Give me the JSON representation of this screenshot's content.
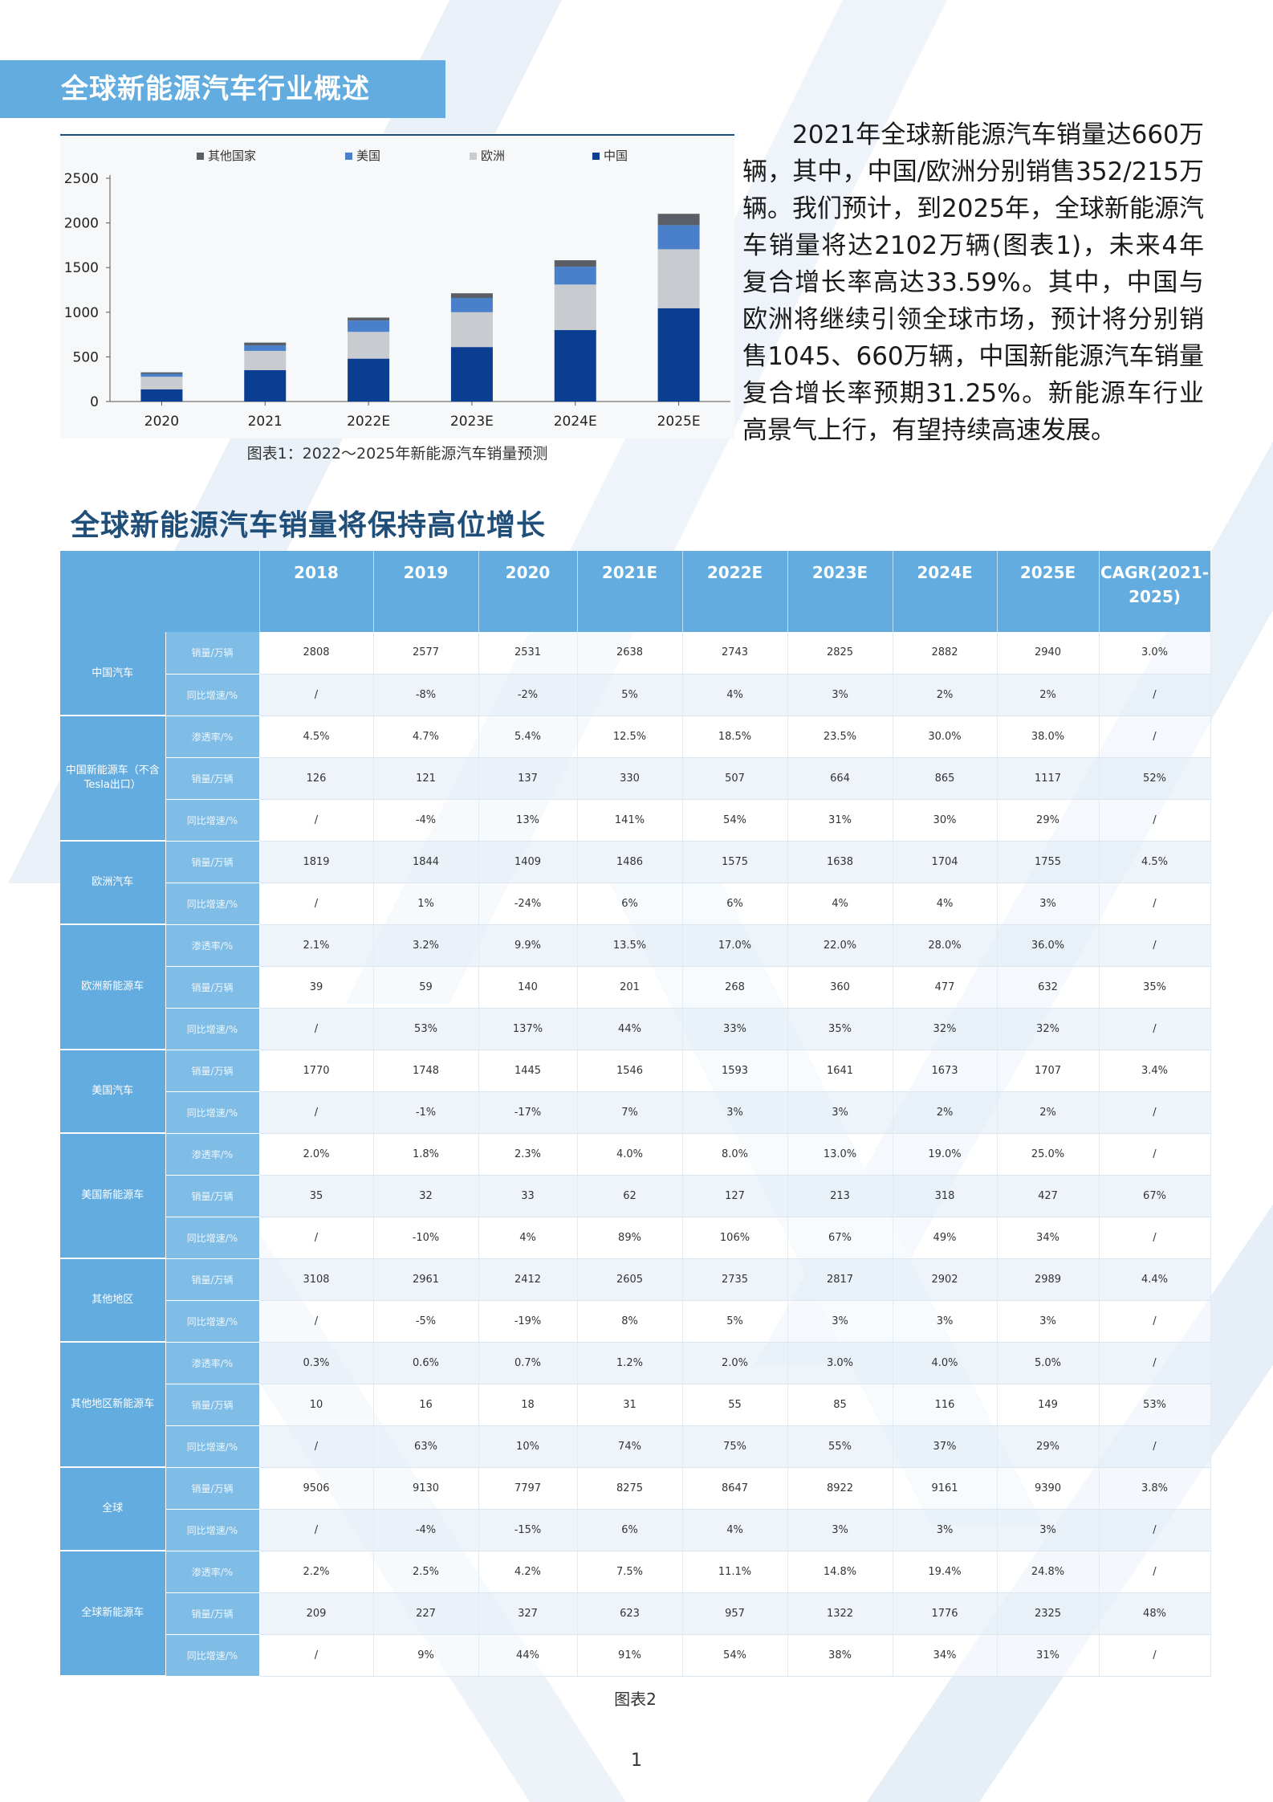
{
  "section": {
    "title": "全球新能源汽车行业概述"
  },
  "intro": {
    "text": "2021年全球新能源汽车销量达660万辆，其中，中国/欧洲分别销售352/215万辆。我们预计，到2025年，全球新能源汽车销量将达2102万辆(图表1)，未来4年复合增长率高达33.59%。其中，中国与欧洲将继续引领全球市场，预计将分别销售1045、660万辆，中国新能源汽车销量复合增长率预期31.25%。新能源车行业高景气上行，有望持续高速发展。"
  },
  "chart_data": {
    "type": "bar",
    "stacked": true,
    "caption": "图表1：2022～2025年新能源汽车销量预测",
    "categories": [
      "2020",
      "2021",
      "2022E",
      "2023E",
      "2024E",
      "2025E"
    ],
    "series": [
      {
        "name": "中国",
        "color": "#0b3d91",
        "values": [
          137,
          352,
          480,
          610,
          800,
          1045
        ]
      },
      {
        "name": "欧洲",
        "color": "#c8cbd0",
        "values": [
          140,
          215,
          300,
          390,
          510,
          660
        ]
      },
      {
        "name": "美国",
        "color": "#4a7fc9",
        "values": [
          33,
          62,
          127,
          160,
          200,
          270
        ]
      },
      {
        "name": "其他国家",
        "color": "#5a5e66",
        "values": [
          17,
          31,
          33,
          52,
          72,
          127
        ]
      }
    ],
    "yticks": [
      0,
      500,
      1000,
      1500,
      2000,
      2500
    ],
    "ylim": [
      0,
      2500
    ],
    "legend_order": [
      "其他国家",
      "美国",
      "欧洲",
      "中国"
    ],
    "legend_position": "top",
    "grid": false
  },
  "table": {
    "title": "全球新能源汽车销量将保持高位增长",
    "caption": "图表2",
    "headers": [
      "2018",
      "2019",
      "2020",
      "2021E",
      "2022E",
      "2023E",
      "2024E",
      "2025E",
      "CAGR(2021-2025)"
    ],
    "groups": [
      {
        "name": "中国汽车",
        "rows": [
          {
            "metric": "销量/万辆",
            "values": [
              "2808",
              "2577",
              "2531",
              "2638",
              "2743",
              "2825",
              "2882",
              "2940",
              "3.0%"
            ]
          },
          {
            "metric": "同比增速/%",
            "values": [
              "/",
              "-8%",
              "-2%",
              "5%",
              "4%",
              "3%",
              "2%",
              "2%",
              "/"
            ]
          }
        ]
      },
      {
        "name": "中国新能源车（不含Tesla出口）",
        "rows": [
          {
            "metric": "渗透率/%",
            "values": [
              "4.5%",
              "4.7%",
              "5.4%",
              "12.5%",
              "18.5%",
              "23.5%",
              "30.0%",
              "38.0%",
              "/"
            ]
          },
          {
            "metric": "销量/万辆",
            "values": [
              "126",
              "121",
              "137",
              "330",
              "507",
              "664",
              "865",
              "1117",
              "52%"
            ]
          },
          {
            "metric": "同比增速/%",
            "values": [
              "/",
              "-4%",
              "13%",
              "141%",
              "54%",
              "31%",
              "30%",
              "29%",
              "/"
            ]
          }
        ]
      },
      {
        "name": "欧洲汽车",
        "rows": [
          {
            "metric": "销量/万辆",
            "values": [
              "1819",
              "1844",
              "1409",
              "1486",
              "1575",
              "1638",
              "1704",
              "1755",
              "4.5%"
            ]
          },
          {
            "metric": "同比增速/%",
            "values": [
              "/",
              "1%",
              "-24%",
              "6%",
              "6%",
              "4%",
              "4%",
              "3%",
              "/"
            ]
          }
        ]
      },
      {
        "name": "欧洲新能源车",
        "rows": [
          {
            "metric": "渗透率/%",
            "values": [
              "2.1%",
              "3.2%",
              "9.9%",
              "13.5%",
              "17.0%",
              "22.0%",
              "28.0%",
              "36.0%",
              "/"
            ]
          },
          {
            "metric": "销量/万辆",
            "values": [
              "39",
              "59",
              "140",
              "201",
              "268",
              "360",
              "477",
              "632",
              "35%"
            ]
          },
          {
            "metric": "同比增速/%",
            "values": [
              "/",
              "53%",
              "137%",
              "44%",
              "33%",
              "35%",
              "32%",
              "32%",
              "/"
            ]
          }
        ]
      },
      {
        "name": "美国汽车",
        "rows": [
          {
            "metric": "销量/万辆",
            "values": [
              "1770",
              "1748",
              "1445",
              "1546",
              "1593",
              "1641",
              "1673",
              "1707",
              "3.4%"
            ]
          },
          {
            "metric": "同比增速/%",
            "values": [
              "/",
              "-1%",
              "-17%",
              "7%",
              "3%",
              "3%",
              "2%",
              "2%",
              "/"
            ]
          }
        ]
      },
      {
        "name": "美国新能源车",
        "rows": [
          {
            "metric": "渗透率/%",
            "values": [
              "2.0%",
              "1.8%",
              "2.3%",
              "4.0%",
              "8.0%",
              "13.0%",
              "19.0%",
              "25.0%",
              "/"
            ]
          },
          {
            "metric": "销量/万辆",
            "values": [
              "35",
              "32",
              "33",
              "62",
              "127",
              "213",
              "318",
              "427",
              "67%"
            ]
          },
          {
            "metric": "同比增速/%",
            "values": [
              "/",
              "-10%",
              "4%",
              "89%",
              "106%",
              "67%",
              "49%",
              "34%",
              "/"
            ]
          }
        ]
      },
      {
        "name": "其他地区",
        "rows": [
          {
            "metric": "销量/万辆",
            "values": [
              "3108",
              "2961",
              "2412",
              "2605",
              "2735",
              "2817",
              "2902",
              "2989",
              "4.4%"
            ]
          },
          {
            "metric": "同比增速/%",
            "values": [
              "/",
              "-5%",
              "-19%",
              "8%",
              "5%",
              "3%",
              "3%",
              "3%",
              "/"
            ]
          }
        ]
      },
      {
        "name": "其他地区新能源车",
        "rows": [
          {
            "metric": "渗透率/%",
            "values": [
              "0.3%",
              "0.6%",
              "0.7%",
              "1.2%",
              "2.0%",
              "3.0%",
              "4.0%",
              "5.0%",
              "/"
            ]
          },
          {
            "metric": "销量/万辆",
            "values": [
              "10",
              "16",
              "18",
              "31",
              "55",
              "85",
              "116",
              "149",
              "53%"
            ]
          },
          {
            "metric": "同比增速/%",
            "values": [
              "/",
              "63%",
              "10%",
              "74%",
              "75%",
              "55%",
              "37%",
              "29%",
              "/"
            ]
          }
        ]
      },
      {
        "name": "全球",
        "rows": [
          {
            "metric": "销量/万辆",
            "values": [
              "9506",
              "9130",
              "7797",
              "8275",
              "8647",
              "8922",
              "9161",
              "9390",
              "3.8%"
            ]
          },
          {
            "metric": "同比增速/%",
            "values": [
              "/",
              "-4%",
              "-15%",
              "6%",
              "4%",
              "3%",
              "3%",
              "3%",
              "/"
            ]
          }
        ]
      },
      {
        "name": "全球新能源车",
        "rows": [
          {
            "metric": "渗透率/%",
            "values": [
              "2.2%",
              "2.5%",
              "4.2%",
              "7.5%",
              "11.1%",
              "14.8%",
              "19.4%",
              "24.8%",
              "/"
            ]
          },
          {
            "metric": "销量/万辆",
            "values": [
              "209",
              "227",
              "327",
              "623",
              "957",
              "1322",
              "1776",
              "2325",
              "48%"
            ]
          },
          {
            "metric": "同比增速/%",
            "values": [
              "/",
              "9%",
              "44%",
              "91%",
              "54%",
              "38%",
              "34%",
              "31%",
              "/"
            ]
          }
        ]
      }
    ]
  },
  "page": {
    "number": "1"
  }
}
